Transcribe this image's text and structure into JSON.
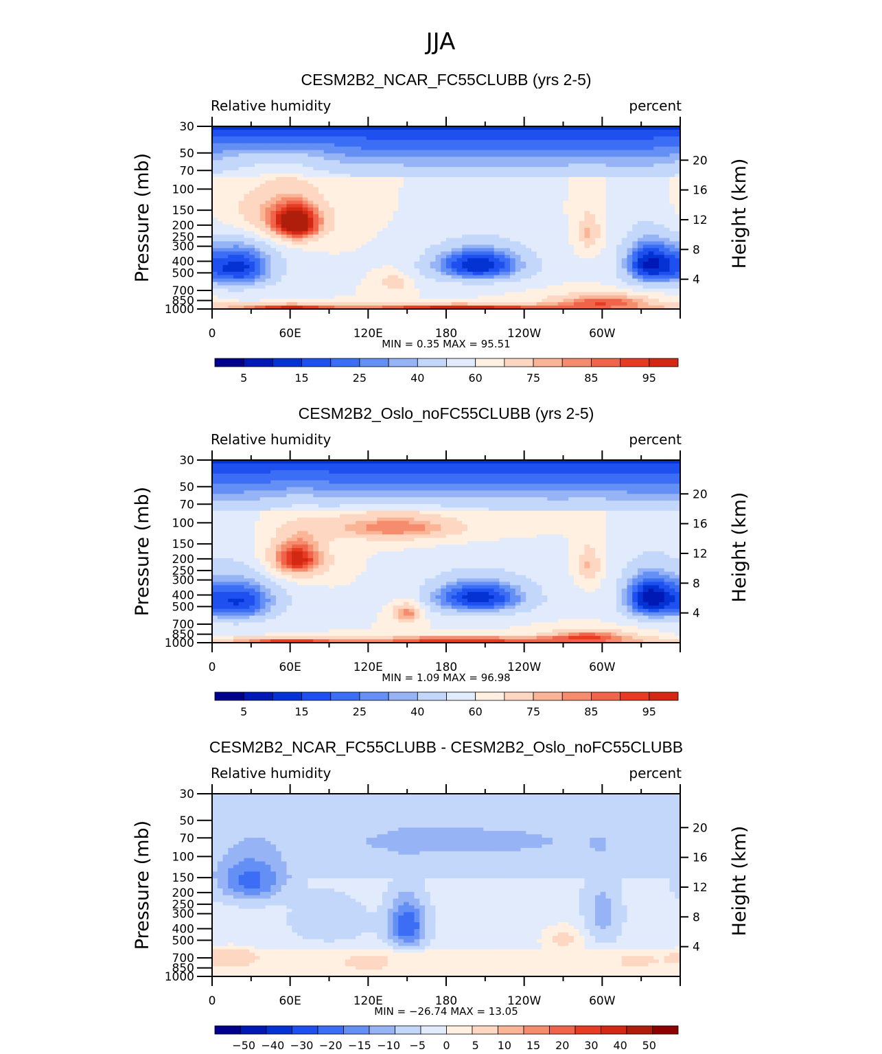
{
  "figure_title": "JJA",
  "chart_data": [
    {
      "type": "contour",
      "title": "CESM2B2_NCAR_FC55CLUBB (yrs 2-5)",
      "left_label": "Relative humidity",
      "right_label": "percent",
      "ylabel_left": "Pressure (mb)",
      "ylabel_right": "Height (km)",
      "xticklabels": [
        "0",
        "60E",
        "120E",
        "180",
        "120W",
        "60W"
      ],
      "pressure_ticks": [
        "30",
        "50",
        "70",
        "100",
        "150",
        "200",
        "250",
        "300",
        "400",
        "500",
        "700",
        "850",
        "1000"
      ],
      "height_ticks": [
        "20",
        "16",
        "12",
        "8",
        "4"
      ],
      "minmax_text": "MIN =     0.35   MAX =    95.51",
      "min": 0.35,
      "max": 95.51,
      "colorbar_labels": [
        "5",
        "15",
        "25",
        "40",
        "60",
        "75",
        "85",
        "95"
      ],
      "colors": [
        "#00008c",
        "#0018b4",
        "#0532d2",
        "#1e50f0",
        "#3c6ef5",
        "#6490f5",
        "#96b4f5",
        "#c3d7fa",
        "#e1ebfc",
        "#fff0e1",
        "#fdd7c1",
        "#fab496",
        "#f58c6e",
        "#f0644b",
        "#e63c23",
        "#d22814",
        "#af1e0a",
        "#8c0000"
      ],
      "features": [
        {
          "lon": 20,
          "p": 450,
          "v": 8,
          "sx": 22,
          "sy": 150
        },
        {
          "lon": 205,
          "p": 430,
          "v": 5,
          "sx": 28,
          "sy": 110
        },
        {
          "lon": 335,
          "p": 420,
          "v": 8,
          "sx": 15,
          "sy": 140
        },
        {
          "lon": 65,
          "p": 200,
          "v": 94,
          "sx": 14,
          "sy": 50
        },
        {
          "lon": 45,
          "p": 160,
          "v": 72,
          "sx": 30,
          "sy": 60
        },
        {
          "lon": 290,
          "p": 230,
          "v": 72,
          "sx": 6,
          "sy": 60
        },
        {
          "lon": 140,
          "p": 600,
          "v": 68,
          "sx": 8,
          "sy": 80
        },
        {
          "lon": 60,
          "p": 970,
          "v": 90,
          "sx": 25,
          "sy": 45
        },
        {
          "lon": 190,
          "p": 965,
          "v": 93,
          "sx": 50,
          "sy": 40
        },
        {
          "lon": 300,
          "p": 880,
          "v": 85,
          "sx": 30,
          "sy": 100
        }
      ]
    },
    {
      "type": "contour",
      "title": "CESM2B2_Oslo_noFC55CLUBB (yrs 2-5)",
      "left_label": "Relative humidity",
      "right_label": "percent",
      "ylabel_left": "Pressure (mb)",
      "ylabel_right": "Height (km)",
      "xticklabels": [
        "0",
        "60E",
        "120E",
        "180",
        "120W",
        "60W"
      ],
      "pressure_ticks": [
        "30",
        "50",
        "70",
        "100",
        "150",
        "200",
        "250",
        "300",
        "400",
        "500",
        "700",
        "850",
        "1000"
      ],
      "height_ticks": [
        "20",
        "16",
        "12",
        "8",
        "4"
      ],
      "minmax_text": "MIN =     1.09   MAX =    96.98",
      "min": 1.09,
      "max": 96.98,
      "colorbar_labels": [
        "5",
        "15",
        "25",
        "40",
        "60",
        "75",
        "85",
        "95"
      ],
      "colors": [
        "#00008c",
        "#0018b4",
        "#0532d2",
        "#1e50f0",
        "#3c6ef5",
        "#6490f5",
        "#96b4f5",
        "#c3d7fa",
        "#e1ebfc",
        "#fff0e1",
        "#fdd7c1",
        "#fab496",
        "#f58c6e",
        "#f0644b",
        "#e63c23",
        "#d22814",
        "#af1e0a",
        "#8c0000"
      ],
      "features": [
        {
          "lon": 20,
          "p": 450,
          "v": 10,
          "sx": 24,
          "sy": 150
        },
        {
          "lon": 205,
          "p": 420,
          "v": 7,
          "sx": 30,
          "sy": 110
        },
        {
          "lon": 335,
          "p": 420,
          "v": 8,
          "sx": 15,
          "sy": 140
        },
        {
          "lon": 65,
          "p": 200,
          "v": 95,
          "sx": 16,
          "sy": 55
        },
        {
          "lon": 140,
          "p": 110,
          "v": 80,
          "sx": 40,
          "sy": 20
        },
        {
          "lon": 290,
          "p": 230,
          "v": 72,
          "sx": 6,
          "sy": 60
        },
        {
          "lon": 150,
          "p": 560,
          "v": 82,
          "sx": 8,
          "sy": 80
        },
        {
          "lon": 60,
          "p": 970,
          "v": 88,
          "sx": 25,
          "sy": 45
        },
        {
          "lon": 190,
          "p": 955,
          "v": 90,
          "sx": 50,
          "sy": 50
        },
        {
          "lon": 290,
          "p": 900,
          "v": 85,
          "sx": 25,
          "sy": 90
        }
      ]
    },
    {
      "type": "contour",
      "title": "CESM2B2_NCAR_FC55CLUBB - CESM2B2_Oslo_noFC55CLUBB",
      "left_label": "Relative humidity",
      "right_label": "percent",
      "ylabel_left": "Pressure (mb)",
      "ylabel_right": "Height (km)",
      "xticklabels": [
        "0",
        "60E",
        "120E",
        "180",
        "120W",
        "60W"
      ],
      "pressure_ticks": [
        "30",
        "50",
        "70",
        "100",
        "150",
        "200",
        "250",
        "300",
        "400",
        "500",
        "700",
        "850",
        "1000"
      ],
      "height_ticks": [
        "20",
        "16",
        "12",
        "8",
        "4"
      ],
      "minmax_text": "MIN =  −26.74   MAX =    13.05",
      "min": -26.74,
      "max": 13.05,
      "colorbar_labels": [
        "−50",
        "−40",
        "−30",
        "−20",
        "−15",
        "−10",
        "−5",
        "0",
        "5",
        "10",
        "15",
        "20",
        "30",
        "40",
        "50"
      ],
      "colors": [
        "#00008c",
        "#0018b4",
        "#0532d2",
        "#1e50f0",
        "#3c6ef5",
        "#6490f5",
        "#96b4f5",
        "#c3d7fa",
        "#e1ebfc",
        "#fff0e1",
        "#fdd7c1",
        "#fab496",
        "#f58c6e",
        "#f0644b",
        "#e63c23",
        "#d22814",
        "#af1e0a",
        "#8c0000"
      ],
      "features": [
        {
          "lon": 30,
          "p": 160,
          "v": -22,
          "sx": 18,
          "sy": 50
        },
        {
          "lon": 150,
          "p": 380,
          "v": -26,
          "sx": 10,
          "sy": 120
        },
        {
          "lon": 190,
          "p": 75,
          "v": -12,
          "sx": 80,
          "sy": 18
        },
        {
          "lon": 90,
          "p": 350,
          "v": -10,
          "sx": 20,
          "sy": 100
        },
        {
          "lon": 300,
          "p": 300,
          "v": -12,
          "sx": 10,
          "sy": 150
        },
        {
          "lon": 15,
          "p": 700,
          "v": 8,
          "sx": 18,
          "sy": 100
        },
        {
          "lon": 120,
          "p": 760,
          "v": 8,
          "sx": 15,
          "sy": 90
        },
        {
          "lon": 270,
          "p": 500,
          "v": 7,
          "sx": 12,
          "sy": 90
        },
        {
          "lon": 325,
          "p": 750,
          "v": 6,
          "sx": 15,
          "sy": 100
        },
        {
          "lon": 210,
          "p": 920,
          "v": 5,
          "sx": 40,
          "sy": 40
        }
      ]
    }
  ]
}
